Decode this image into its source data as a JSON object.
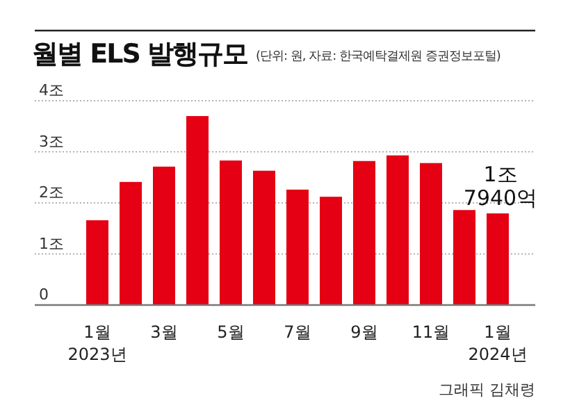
{
  "chart_data": {
    "type": "bar",
    "title": "월별 ELS 발행규모",
    "subtitle": "(단위: 원, 자료: 한국예탁결제원 증권정보포털)",
    "categories": [
      "1월\n2023년",
      null,
      "3월",
      null,
      "5월",
      null,
      "7월",
      null,
      "9월",
      null,
      "11월",
      null,
      "1월\n2024년"
    ],
    "values": [
      1.66,
      2.41,
      2.71,
      3.7,
      2.83,
      2.63,
      2.26,
      2.12,
      2.82,
      2.93,
      2.78,
      1.86,
      1.794
    ],
    "color": "#e50013",
    "ylim": [
      0,
      4
    ],
    "yticks": [
      0,
      {
        "value": 1,
        "label": "1조"
      },
      {
        "value": 2,
        "label": "2조"
      },
      {
        "value": 3,
        "label": "3조"
      },
      {
        "value": 4,
        "label": "4조"
      }
    ],
    "grid": "y",
    "annotations": [
      {
        "text": "1조\n7940억",
        "x": "1월\n2024년",
        "y": 1.794
      },
      "그래픽 김채령"
    ]
  }
}
